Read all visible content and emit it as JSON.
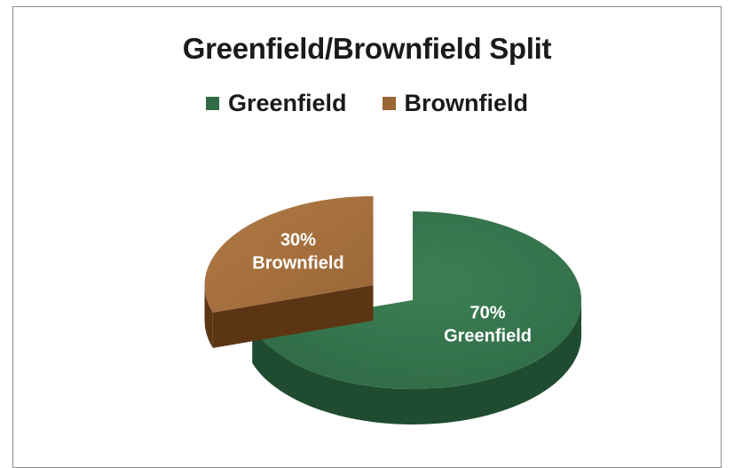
{
  "chart_data": {
    "type": "pie",
    "title": "Greenfield/Brownfield Split",
    "categories": [
      "Greenfield",
      "Brownfield"
    ],
    "values": [
      70,
      30
    ],
    "slices": [
      {
        "name": "Greenfield",
        "value": 70,
        "label_value": "70%",
        "label_name": "Greenfield",
        "color": "#2f6b45",
        "side_color": "#1f4c30",
        "exploded": false
      },
      {
        "name": "Brownfield",
        "value": 30,
        "label_value": "30%",
        "label_name": "Brownfield",
        "color": "#9a6636",
        "side_color": "#5c3515",
        "exploded": true
      }
    ],
    "legend": {
      "placement": "top",
      "entries": [
        "Greenfield",
        "Brownfield"
      ]
    },
    "style": "3d-exploded"
  }
}
